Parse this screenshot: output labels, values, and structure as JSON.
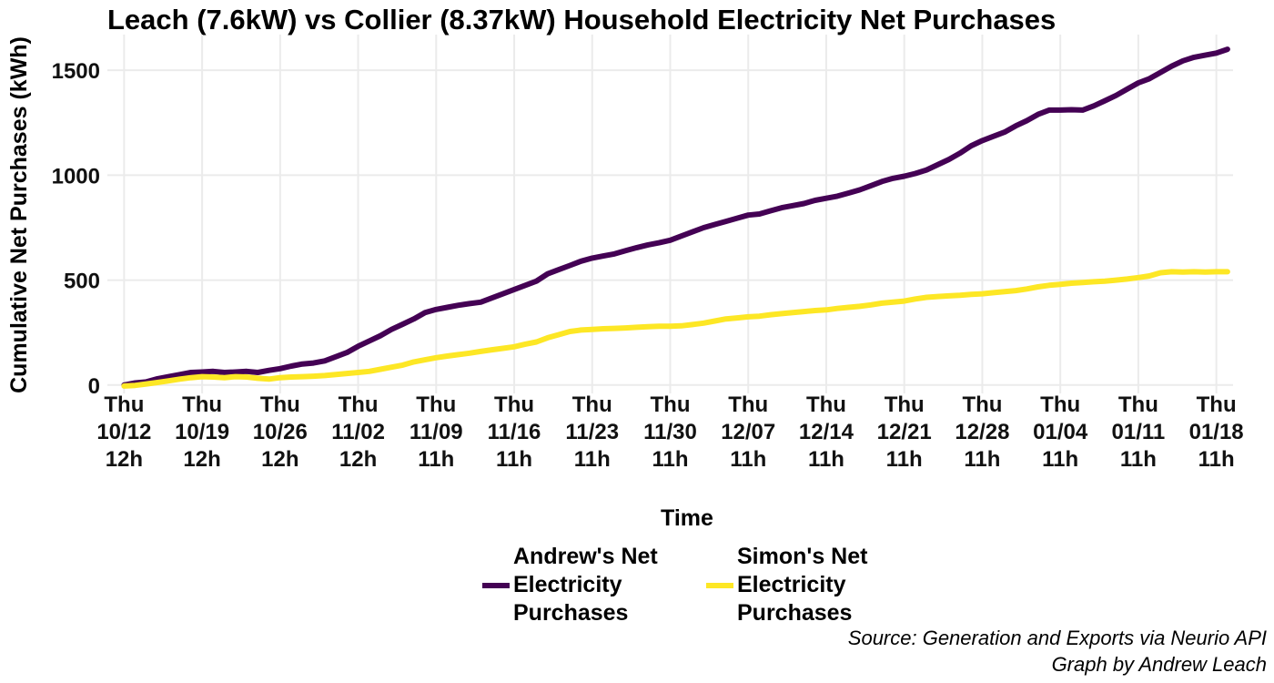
{
  "chart_data": {
    "type": "line",
    "title": "Leach (7.6kW) vs Collier (8.37kW) Household Electricity Net Purchases",
    "xlabel": "Time",
    "ylabel": "Cumulative Net Purchases (kWh)",
    "ylim": [
      -40,
      1670
    ],
    "yticks": [
      0,
      500,
      1000,
      1500
    ],
    "xlim": [
      -1.5,
      99.5
    ],
    "xticks": [
      {
        "x": 0,
        "label": [
          "Thu",
          "10/12",
          "12h"
        ]
      },
      {
        "x": 7,
        "label": [
          "Thu",
          "10/19",
          "12h"
        ]
      },
      {
        "x": 14,
        "label": [
          "Thu",
          "10/26",
          "12h"
        ]
      },
      {
        "x": 21,
        "label": [
          "Thu",
          "11/02",
          "12h"
        ]
      },
      {
        "x": 28,
        "label": [
          "Thu",
          "11/09",
          "11h"
        ]
      },
      {
        "x": 35,
        "label": [
          "Thu",
          "11/16",
          "11h"
        ]
      },
      {
        "x": 42,
        "label": [
          "Thu",
          "11/23",
          "11h"
        ]
      },
      {
        "x": 49,
        "label": [
          "Thu",
          "11/30",
          "11h"
        ]
      },
      {
        "x": 56,
        "label": [
          "Thu",
          "12/07",
          "11h"
        ]
      },
      {
        "x": 63,
        "label": [
          "Thu",
          "12/14",
          "11h"
        ]
      },
      {
        "x": 70,
        "label": [
          "Thu",
          "12/21",
          "11h"
        ]
      },
      {
        "x": 77,
        "label": [
          "Thu",
          "12/28",
          "11h"
        ]
      },
      {
        "x": 84,
        "label": [
          "Thu",
          "01/04",
          "11h"
        ]
      },
      {
        "x": 91,
        "label": [
          "Thu",
          "01/11",
          "11h"
        ]
      },
      {
        "x": 98,
        "label": [
          "Thu",
          "01/18",
          "11h"
        ]
      }
    ],
    "grid": true,
    "legend_position": "bottom",
    "series": [
      {
        "name": "Andrew's Net Electricity Purchases",
        "color": "#440154",
        "points": [
          [
            0,
            0
          ],
          [
            1,
            10
          ],
          [
            2,
            15
          ],
          [
            3,
            30
          ],
          [
            4,
            40
          ],
          [
            5,
            50
          ],
          [
            6,
            60
          ],
          [
            7,
            62
          ],
          [
            8,
            65
          ],
          [
            9,
            60
          ],
          [
            10,
            62
          ],
          [
            11,
            65
          ],
          [
            12,
            60
          ],
          [
            13,
            70
          ],
          [
            14,
            78
          ],
          [
            15,
            90
          ],
          [
            16,
            100
          ],
          [
            17,
            105
          ],
          [
            18,
            115
          ],
          [
            19,
            135
          ],
          [
            20,
            155
          ],
          [
            21,
            185
          ],
          [
            22,
            210
          ],
          [
            23,
            235
          ],
          [
            24,
            265
          ],
          [
            25,
            290
          ],
          [
            26,
            315
          ],
          [
            27,
            345
          ],
          [
            28,
            360
          ],
          [
            29,
            370
          ],
          [
            30,
            380
          ],
          [
            31,
            388
          ],
          [
            32,
            395
          ],
          [
            33,
            415
          ],
          [
            34,
            435
          ],
          [
            35,
            455
          ],
          [
            36,
            475
          ],
          [
            37,
            495
          ],
          [
            38,
            530
          ],
          [
            39,
            550
          ],
          [
            40,
            570
          ],
          [
            41,
            590
          ],
          [
            42,
            605
          ],
          [
            43,
            615
          ],
          [
            44,
            625
          ],
          [
            45,
            640
          ],
          [
            46,
            655
          ],
          [
            47,
            668
          ],
          [
            48,
            678
          ],
          [
            49,
            690
          ],
          [
            50,
            710
          ],
          [
            51,
            730
          ],
          [
            52,
            750
          ],
          [
            53,
            765
          ],
          [
            54,
            780
          ],
          [
            55,
            795
          ],
          [
            56,
            810
          ],
          [
            57,
            815
          ],
          [
            58,
            830
          ],
          [
            59,
            845
          ],
          [
            60,
            855
          ],
          [
            61,
            865
          ],
          [
            62,
            880
          ],
          [
            63,
            890
          ],
          [
            64,
            900
          ],
          [
            65,
            915
          ],
          [
            66,
            930
          ],
          [
            67,
            950
          ],
          [
            68,
            970
          ],
          [
            69,
            985
          ],
          [
            70,
            995
          ],
          [
            71,
            1008
          ],
          [
            72,
            1025
          ],
          [
            73,
            1050
          ],
          [
            74,
            1075
          ],
          [
            75,
            1105
          ],
          [
            76,
            1140
          ],
          [
            77,
            1165
          ],
          [
            78,
            1185
          ],
          [
            79,
            1205
          ],
          [
            80,
            1235
          ],
          [
            81,
            1260
          ],
          [
            82,
            1290
          ],
          [
            83,
            1310
          ],
          [
            84,
            1310
          ],
          [
            85,
            1312
          ],
          [
            86,
            1310
          ],
          [
            87,
            1330
          ],
          [
            88,
            1355
          ],
          [
            89,
            1380
          ],
          [
            90,
            1410
          ],
          [
            91,
            1440
          ],
          [
            92,
            1460
          ],
          [
            93,
            1490
          ],
          [
            94,
            1520
          ],
          [
            95,
            1545
          ],
          [
            96,
            1562
          ],
          [
            97,
            1572
          ],
          [
            98,
            1582
          ],
          [
            99,
            1600
          ]
        ]
      },
      {
        "name": "Simon's Net Electricity Purchases",
        "color": "#fde725",
        "points": [
          [
            0,
            -5
          ],
          [
            1,
            -2
          ],
          [
            2,
            5
          ],
          [
            3,
            12
          ],
          [
            4,
            20
          ],
          [
            5,
            28
          ],
          [
            6,
            35
          ],
          [
            7,
            40
          ],
          [
            8,
            38
          ],
          [
            9,
            35
          ],
          [
            10,
            40
          ],
          [
            11,
            38
          ],
          [
            12,
            32
          ],
          [
            13,
            28
          ],
          [
            14,
            35
          ],
          [
            15,
            38
          ],
          [
            16,
            40
          ],
          [
            17,
            42
          ],
          [
            18,
            45
          ],
          [
            19,
            50
          ],
          [
            20,
            55
          ],
          [
            21,
            60
          ],
          [
            22,
            65
          ],
          [
            23,
            75
          ],
          [
            24,
            85
          ],
          [
            25,
            95
          ],
          [
            26,
            110
          ],
          [
            27,
            120
          ],
          [
            28,
            130
          ],
          [
            29,
            138
          ],
          [
            30,
            145
          ],
          [
            31,
            152
          ],
          [
            32,
            160
          ],
          [
            33,
            168
          ],
          [
            34,
            175
          ],
          [
            35,
            182
          ],
          [
            36,
            195
          ],
          [
            37,
            205
          ],
          [
            38,
            225
          ],
          [
            39,
            240
          ],
          [
            40,
            255
          ],
          [
            41,
            262
          ],
          [
            42,
            265
          ],
          [
            43,
            268
          ],
          [
            44,
            270
          ],
          [
            45,
            272
          ],
          [
            46,
            275
          ],
          [
            47,
            278
          ],
          [
            48,
            280
          ],
          [
            49,
            280
          ],
          [
            50,
            282
          ],
          [
            51,
            288
          ],
          [
            52,
            295
          ],
          [
            53,
            305
          ],
          [
            54,
            315
          ],
          [
            55,
            320
          ],
          [
            56,
            325
          ],
          [
            57,
            328
          ],
          [
            58,
            335
          ],
          [
            59,
            340
          ],
          [
            60,
            345
          ],
          [
            61,
            350
          ],
          [
            62,
            355
          ],
          [
            63,
            358
          ],
          [
            64,
            365
          ],
          [
            65,
            370
          ],
          [
            66,
            375
          ],
          [
            67,
            382
          ],
          [
            68,
            390
          ],
          [
            69,
            395
          ],
          [
            70,
            400
          ],
          [
            71,
            410
          ],
          [
            72,
            418
          ],
          [
            73,
            422
          ],
          [
            74,
            425
          ],
          [
            75,
            428
          ],
          [
            76,
            432
          ],
          [
            77,
            435
          ],
          [
            78,
            440
          ],
          [
            79,
            445
          ],
          [
            80,
            450
          ],
          [
            81,
            458
          ],
          [
            82,
            468
          ],
          [
            83,
            475
          ],
          [
            84,
            480
          ],
          [
            85,
            485
          ],
          [
            86,
            488
          ],
          [
            87,
            492
          ],
          [
            88,
            495
          ],
          [
            89,
            500
          ],
          [
            90,
            505
          ],
          [
            91,
            512
          ],
          [
            92,
            520
          ],
          [
            93,
            535
          ],
          [
            94,
            540
          ],
          [
            95,
            538
          ],
          [
            96,
            540
          ],
          [
            97,
            538
          ],
          [
            98,
            540
          ],
          [
            99,
            540
          ]
        ]
      }
    ]
  },
  "legend": {
    "items": [
      {
        "label": "Andrew's Net Electricity Purchases",
        "color": "#440154"
      },
      {
        "label": "Simon's Net Electricity Purchases",
        "color": "#fde725"
      }
    ]
  },
  "caption": {
    "line1": "Source: Generation and Exports via Neurio API",
    "line2": "Graph by Andrew Leach"
  }
}
